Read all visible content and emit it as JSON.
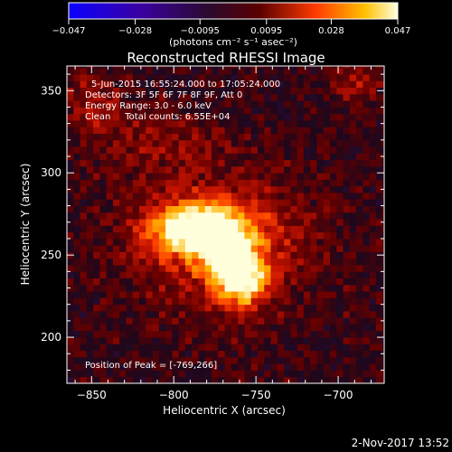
{
  "colorbar": {
    "tick_labels": [
      "-0.047",
      "-0.028",
      "-0.0095",
      "0.0095",
      "0.028",
      "0.047"
    ],
    "range": [
      -0.047,
      0.047
    ],
    "units_label": "(photons cm⁻² s⁻¹ asec⁻²)"
  },
  "chart_data": {
    "type": "heatmap",
    "title": "Reconstructed RHESSI Image",
    "xlabel": "Heliocentric X (arcsec)",
    "ylabel": "Heliocentric Y (arcsec)",
    "xlim": [
      -865,
      -672
    ],
    "ylim": [
      172,
      365
    ],
    "x_ticks": [
      -850,
      -800,
      -750,
      -700
    ],
    "y_ticks": [
      200,
      250,
      300,
      350
    ],
    "x_tick_labels": [
      "−850",
      "−800",
      "−750",
      "−700"
    ],
    "y_tick_labels": [
      "200",
      "250",
      "300",
      "350"
    ],
    "info_lines": [
      "5-Jun-2015 16:55:24.000 to 17:05:24.000",
      "Detectors: 3F 5F 6F 7F 8F 9F, Att 0",
      "Energy Range: 3.0 - 6.0 keV",
      "Clean     Total counts: 6.55E+04"
    ],
    "peak_label": "Position of Peak = [-769,266]",
    "peak_position": [
      -769,
      266
    ],
    "sources": [
      {
        "x": -783,
        "y": 266,
        "sx": 21,
        "sy": 11,
        "amp": 0.047
      },
      {
        "x": -758,
        "y": 236,
        "sx": 11,
        "sy": 12,
        "amp": 0.043
      },
      {
        "x": -770,
        "y": 247,
        "sx": 9,
        "sy": 10,
        "amp": 0.024
      },
      {
        "x": -772,
        "y": 257,
        "sx": 38,
        "sy": 28,
        "amp": 0.02
      },
      {
        "x": -810,
        "y": 320,
        "sx": 30,
        "sy": 14,
        "amp": 0.01
      },
      {
        "x": -690,
        "y": 355,
        "sx": 12,
        "sy": 10,
        "amp": 0.012
      },
      {
        "x": -850,
        "y": 345,
        "sx": 14,
        "sy": 14,
        "amp": 0.011
      }
    ],
    "background_level": 0.002,
    "noise_level": 0.007
  },
  "footer": {
    "timestamp": "2-Nov-2017 13:52"
  }
}
